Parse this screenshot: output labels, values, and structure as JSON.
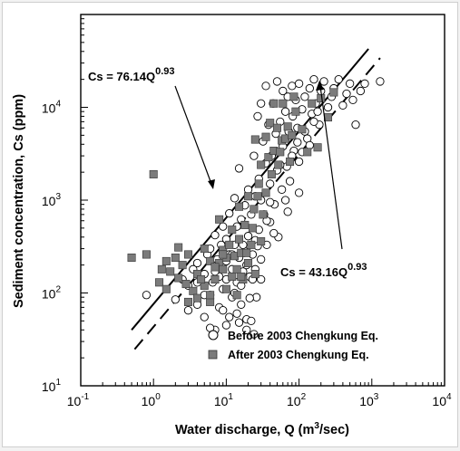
{
  "chart_data": {
    "type": "scatter",
    "x_scale": "log",
    "y_scale": "log",
    "xlim": [
      0.1,
      10000
    ],
    "ylim": [
      10,
      100000
    ],
    "x_ticks": [
      {
        "base": "10",
        "exp": "-1"
      },
      {
        "base": "10",
        "exp": "0"
      },
      {
        "base": "10",
        "exp": "1"
      },
      {
        "base": "10",
        "exp": "2"
      },
      {
        "base": "10",
        "exp": "3"
      },
      {
        "base": "10",
        "exp": "4"
      }
    ],
    "y_ticks": [
      {
        "base": "10",
        "exp": "1"
      },
      {
        "base": "10",
        "exp": "2"
      },
      {
        "base": "10",
        "exp": "3"
      },
      {
        "base": "10",
        "exp": "4"
      }
    ],
    "xlabel": {
      "text": "Water discharge, Q (m",
      "sup": "3",
      "tail": "/sec)"
    },
    "ylabel": "Sediment concentration, Cs (ppm)",
    "legend": {
      "position": "bottom-right",
      "entries": [
        {
          "label": "Before 2003 Chengkung Eq.",
          "marker": "open-circle"
        },
        {
          "label": "After 2003 Chengkung Eq.",
          "marker": "filled-square"
        }
      ]
    },
    "series": [
      {
        "name": "Before 2003 Chengkung Eq.",
        "marker": "open-circle",
        "points": [
          [
            0.8,
            95
          ],
          [
            2,
            85
          ],
          [
            2.5,
            140
          ],
          [
            3,
            120
          ],
          [
            3.5,
            180
          ],
          [
            4,
            210
          ],
          [
            4,
            75
          ],
          [
            5,
            55
          ],
          [
            5,
            160
          ],
          [
            5.5,
            260
          ],
          [
            6,
            95
          ],
          [
            6,
            300
          ],
          [
            6.5,
            130
          ],
          [
            7,
            40
          ],
          [
            7,
            420
          ],
          [
            7.5,
            230
          ],
          [
            8,
            150
          ],
          [
            8,
            70
          ],
          [
            8.5,
            330
          ],
          [
            9,
            520
          ],
          [
            9,
            110
          ],
          [
            10,
            380
          ],
          [
            10,
            140
          ],
          [
            10,
            45
          ],
          [
            11,
            260
          ],
          [
            11,
            720
          ],
          [
            12,
            180
          ],
          [
            12,
            90
          ],
          [
            13,
            1050
          ],
          [
            13,
            330
          ],
          [
            14,
            520
          ],
          [
            14,
            130
          ],
          [
            15,
            2200
          ],
          [
            15,
            240
          ],
          [
            16,
            620
          ],
          [
            16,
            75
          ],
          [
            17,
            170
          ],
          [
            18,
            880
          ],
          [
            18,
            280
          ],
          [
            19,
            40
          ],
          [
            20,
            1300
          ],
          [
            20,
            410
          ],
          [
            21,
            150
          ],
          [
            22,
            700
          ],
          [
            23,
            260
          ],
          [
            24,
            3000
          ],
          [
            25,
            1100
          ],
          [
            25,
            370
          ],
          [
            26,
            90
          ],
          [
            27,
            8000
          ],
          [
            28,
            1700
          ],
          [
            28,
            480
          ],
          [
            30,
            11000
          ],
          [
            30,
            1000
          ],
          [
            30,
            230
          ],
          [
            32,
            4300
          ],
          [
            33,
            700
          ],
          [
            35,
            2500
          ],
          [
            35,
            17000
          ],
          [
            36,
            330
          ],
          [
            38,
            6500
          ],
          [
            40,
            1500
          ],
          [
            40,
            580
          ],
          [
            42,
            3000
          ],
          [
            44,
            11000
          ],
          [
            46,
            900
          ],
          [
            48,
            5200
          ],
          [
            50,
            19000
          ],
          [
            50,
            2100
          ],
          [
            52,
            400
          ],
          [
            55,
            7000
          ],
          [
            58,
            1300
          ],
          [
            60,
            15000
          ],
          [
            60,
            3800
          ],
          [
            65,
            9000
          ],
          [
            68,
            2300
          ],
          [
            70,
            13000
          ],
          [
            72,
            5500
          ],
          [
            75,
            1600
          ],
          [
            80,
            17000
          ],
          [
            82,
            8000
          ],
          [
            85,
            3400
          ],
          [
            90,
            12000
          ],
          [
            95,
            6000
          ],
          [
            100,
            18000
          ],
          [
            100,
            2600
          ],
          [
            110,
            9500
          ],
          [
            120,
            13000
          ],
          [
            130,
            4600
          ],
          [
            140,
            16000
          ],
          [
            150,
            8500
          ],
          [
            160,
            20000
          ],
          [
            170,
            11000
          ],
          [
            190,
            6500
          ],
          [
            200,
            15000
          ],
          [
            220,
            19000
          ],
          [
            250,
            10000
          ],
          [
            280,
            13000
          ],
          [
            300,
            16000
          ],
          [
            350,
            20000
          ],
          [
            400,
            10500
          ],
          [
            450,
            14000
          ],
          [
            500,
            18000
          ],
          [
            550,
            12000
          ],
          [
            600,
            6500
          ],
          [
            700,
            15000
          ],
          [
            800,
            18000
          ],
          [
            1300,
            19000
          ],
          [
            5,
            95
          ],
          [
            6,
            42
          ],
          [
            7,
            170
          ],
          [
            9,
            65
          ],
          [
            11,
            55
          ],
          [
            13,
            100
          ],
          [
            15,
            48
          ],
          [
            17,
            330
          ],
          [
            19,
            52
          ],
          [
            22,
            50
          ],
          [
            24,
            36
          ],
          [
            3,
            65
          ],
          [
            4,
            130
          ],
          [
            10,
            220
          ],
          [
            12,
            260
          ],
          [
            14,
            60
          ],
          [
            16,
            120
          ],
          [
            19,
            200
          ],
          [
            21,
            88
          ],
          [
            23,
            140
          ],
          [
            25,
            180
          ],
          [
            27,
            320
          ],
          [
            30,
            140
          ],
          [
            36,
            600
          ],
          [
            40,
            950
          ],
          [
            45,
            440
          ],
          [
            55,
            2400
          ],
          [
            65,
            1000
          ],
          [
            80,
            3000
          ],
          [
            95,
            4200
          ],
          [
            110,
            3300
          ],
          [
            70,
            750
          ],
          [
            100,
            1200
          ],
          [
            120,
            5500
          ],
          [
            140,
            3900
          ],
          [
            160,
            7000
          ],
          [
            180,
            9000
          ]
        ]
      },
      {
        "name": "After 2003 Chengkung Eq.",
        "marker": "filled-square",
        "points": [
          [
            0.5,
            240
          ],
          [
            0.8,
            260
          ],
          [
            1,
            1900
          ],
          [
            1.2,
            130
          ],
          [
            1.3,
            180
          ],
          [
            1.5,
            220
          ],
          [
            1.7,
            170
          ],
          [
            2,
            240
          ],
          [
            2.2,
            310
          ],
          [
            2.5,
            200
          ],
          [
            2.8,
            125
          ],
          [
            3,
            80
          ],
          [
            3.5,
            105
          ],
          [
            4,
            160
          ],
          [
            4,
            88
          ],
          [
            5,
            300
          ],
          [
            5,
            120
          ],
          [
            6,
            220
          ],
          [
            6,
            80
          ],
          [
            7,
            140
          ],
          [
            8,
            210
          ],
          [
            8,
            620
          ],
          [
            9,
            180
          ],
          [
            9,
            290
          ],
          [
            10,
            110
          ],
          [
            10,
            240
          ],
          [
            11,
            330
          ],
          [
            12,
            150
          ],
          [
            12,
            480
          ],
          [
            13,
            250
          ],
          [
            14,
            180
          ],
          [
            15,
            850
          ],
          [
            15,
            380
          ],
          [
            16,
            270
          ],
          [
            17,
            140
          ],
          [
            18,
            540
          ],
          [
            20,
            210
          ],
          [
            20,
            1100
          ],
          [
            22,
            330
          ],
          [
            24,
            800
          ],
          [
            25,
            160
          ],
          [
            25,
            4500
          ],
          [
            28,
            1500
          ],
          [
            30,
            360
          ],
          [
            30,
            2400
          ],
          [
            32,
            700
          ],
          [
            35,
            4800
          ],
          [
            35,
            1200
          ],
          [
            38,
            2900
          ],
          [
            40,
            6800
          ],
          [
            42,
            1900
          ],
          [
            45,
            3400
          ],
          [
            45,
            11000
          ],
          [
            50,
            6000
          ],
          [
            52,
            2400
          ],
          [
            55,
            3300
          ],
          [
            58,
            4400
          ],
          [
            60,
            11000
          ],
          [
            65,
            4600
          ],
          [
            70,
            6200
          ],
          [
            75,
            2600
          ],
          [
            80,
            5000
          ],
          [
            85,
            13000
          ],
          [
            90,
            9000
          ],
          [
            110,
            5800
          ],
          [
            130,
            3300
          ],
          [
            150,
            11000
          ],
          [
            180,
            3700
          ],
          [
            200,
            12500
          ],
          [
            250,
            7800
          ],
          [
            300,
            14500
          ],
          [
            1.5,
            110
          ],
          [
            2.2,
            145
          ],
          [
            3,
            260
          ],
          [
            4.5,
            140
          ],
          [
            6,
            95
          ],
          [
            7,
            190
          ],
          [
            9,
            260
          ],
          [
            14,
            95
          ],
          [
            16,
            150
          ],
          [
            19,
            270
          ],
          [
            23,
            500
          ],
          [
            27,
            1100
          ]
        ]
      }
    ],
    "fit_lines": [
      {
        "series": "Before 2003 Chengkung Eq.",
        "label": "Cs = 76.14Q",
        "label_exp": "0.93",
        "coef": 76.14,
        "exponent": 0.93,
        "x_range": [
          0.5,
          900
        ],
        "style": "solid"
      },
      {
        "series": "After 2003 Chengkung Eq.",
        "label": "Cs = 43.16Q",
        "label_exp": "0.93",
        "coef": 43.16,
        "exponent": 0.93,
        "x_range": [
          0.55,
          1300
        ],
        "style": "dashed"
      }
    ]
  }
}
